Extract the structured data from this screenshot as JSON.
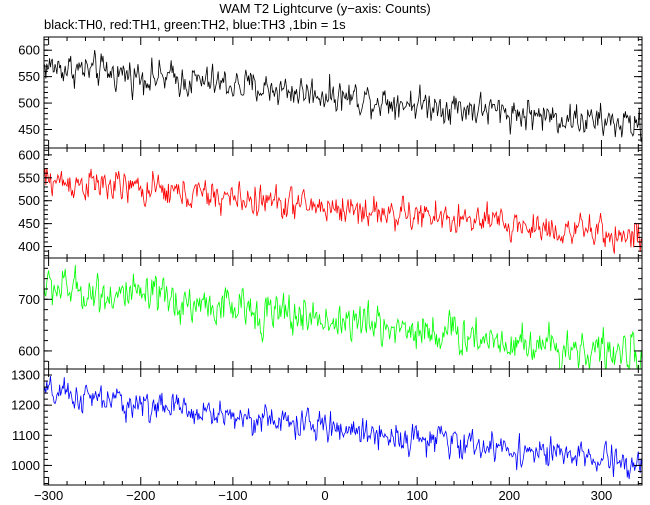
{
  "chart_data": {
    "type": "line",
    "title": "WAM T2 Lightcurve (y−axis: Counts)",
    "subtitle": "black:TH0, red:TH1, green:TH2, blue:TH3 ,1bin = 1s",
    "xlabel": "",
    "ylabel": "",
    "grid": false,
    "x_range": [
      -305,
      344
    ],
    "x_ticks": [
      -300,
      -200,
      -100,
      0,
      100,
      200,
      300
    ],
    "x_tick_labels": [
      "−300",
      "−200",
      "−100",
      "0",
      "100",
      "200",
      "300"
    ],
    "series": [
      {
        "name": "TH0",
        "color": "#000000",
        "ylim": [
          415,
          625
        ],
        "y_ticks": [
          450,
          500,
          550,
          600
        ],
        "start_level": 570,
        "end_level": 457,
        "noise": 22,
        "points": [
          {
            "x": -300,
            "y": 570
          },
          {
            "x": -200,
            "y": 560
          },
          {
            "x": -100,
            "y": 548
          },
          {
            "x": 0,
            "y": 528
          },
          {
            "x": 100,
            "y": 505
          },
          {
            "x": 200,
            "y": 486
          },
          {
            "x": 300,
            "y": 462
          }
        ]
      },
      {
        "name": "TH1",
        "color": "#ff0000",
        "ylim": [
          375,
          615
        ],
        "y_ticks": [
          400,
          450,
          500,
          550,
          600
        ],
        "start_level": 545,
        "end_level": 420,
        "noise": 25,
        "points": [
          {
            "x": -300,
            "y": 545
          },
          {
            "x": -200,
            "y": 532
          },
          {
            "x": -100,
            "y": 512
          },
          {
            "x": 0,
            "y": 492
          },
          {
            "x": 100,
            "y": 470
          },
          {
            "x": 200,
            "y": 448
          },
          {
            "x": 300,
            "y": 428
          }
        ]
      },
      {
        "name": "TH2",
        "color": "#00ff00",
        "ylim": [
          565,
          780
        ],
        "y_ticks": [
          600,
          700
        ],
        "start_level": 725,
        "end_level": 590,
        "noise": 28,
        "points": [
          {
            "x": -300,
            "y": 725
          },
          {
            "x": -200,
            "y": 710
          },
          {
            "x": -100,
            "y": 692
          },
          {
            "x": 0,
            "y": 668
          },
          {
            "x": 100,
            "y": 648
          },
          {
            "x": 200,
            "y": 625
          },
          {
            "x": 300,
            "y": 598
          }
        ]
      },
      {
        "name": "TH3",
        "color": "#0000ff",
        "ylim": [
          935,
          1320
        ],
        "y_ticks": [
          1000,
          1100,
          1200,
          1300
        ],
        "start_level": 1240,
        "end_level": 1000,
        "noise": 35,
        "points": [
          {
            "x": -300,
            "y": 1240
          },
          {
            "x": -200,
            "y": 1215
          },
          {
            "x": -100,
            "y": 1180
          },
          {
            "x": 0,
            "y": 1140
          },
          {
            "x": 100,
            "y": 1100
          },
          {
            "x": 200,
            "y": 1055
          },
          {
            "x": 300,
            "y": 1012
          }
        ]
      }
    ]
  }
}
